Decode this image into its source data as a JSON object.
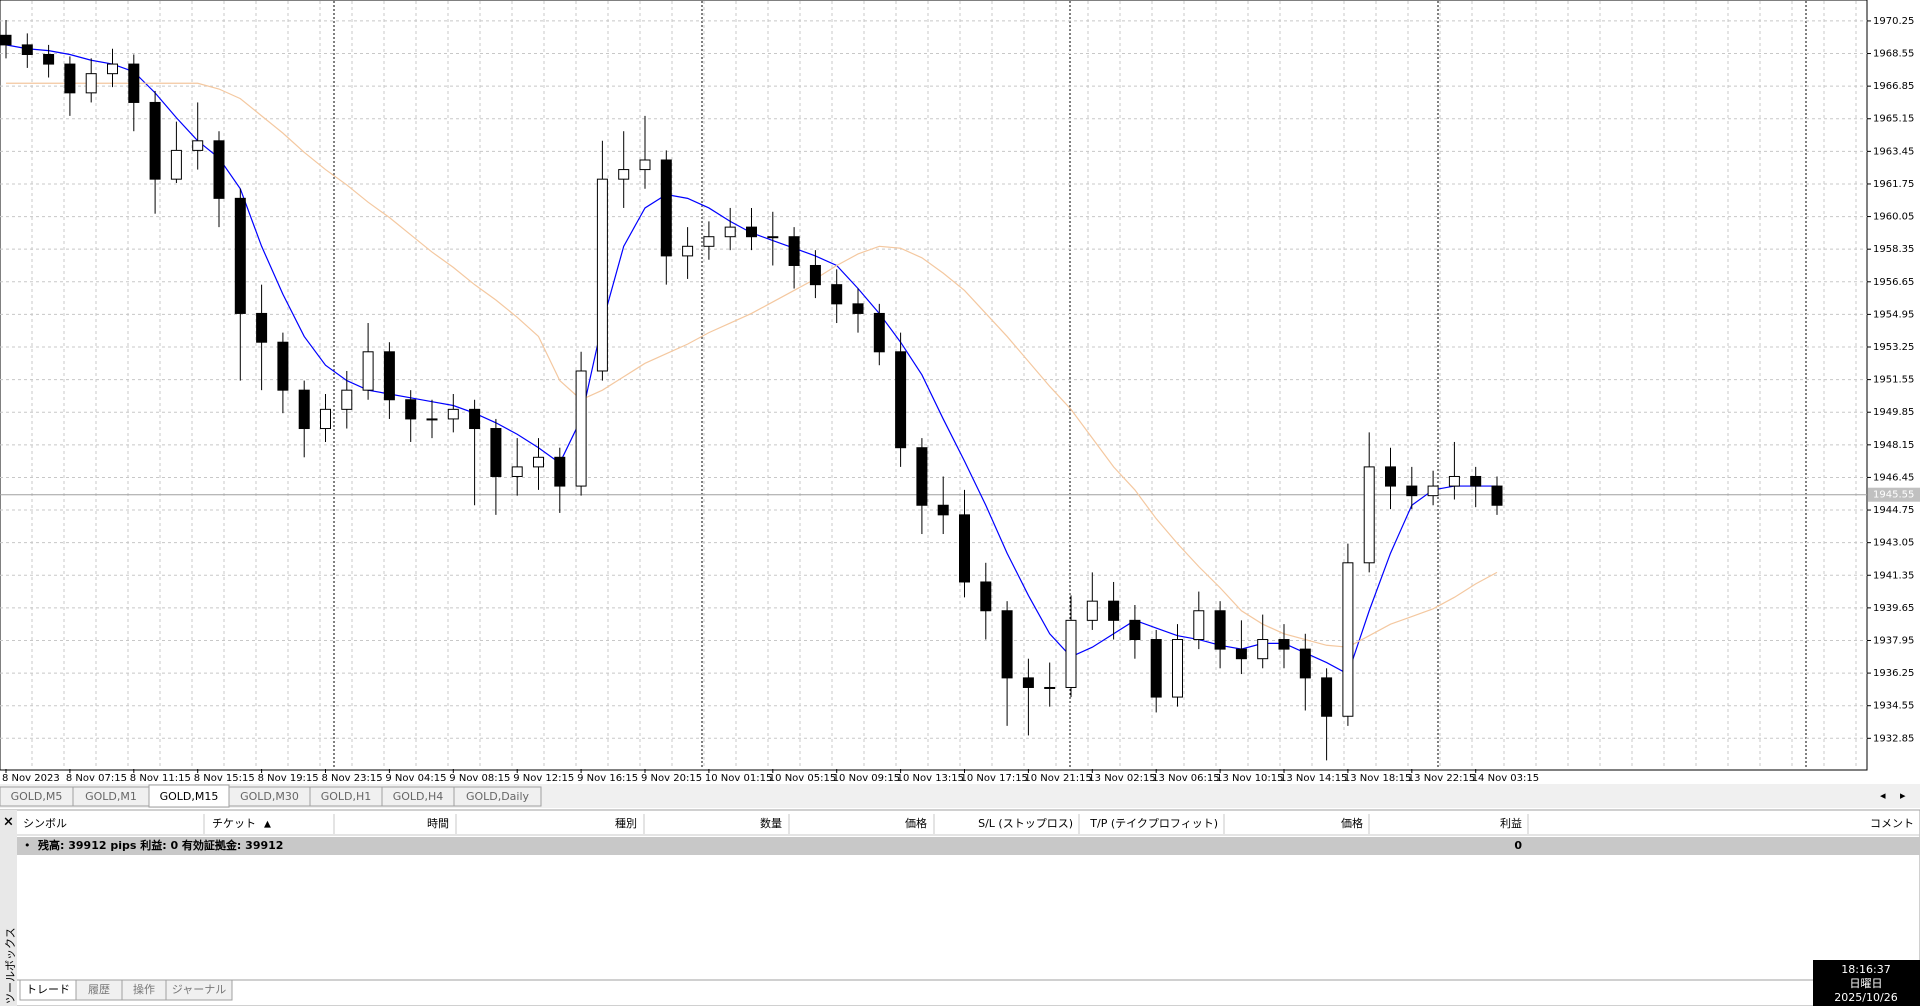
{
  "chart_data": {
    "type": "candlestick",
    "categories": [
      "8 Nov 2023",
      null,
      null,
      "8 Nov 07:15",
      null,
      null,
      "8 Nov 11:15",
      null,
      null,
      "8 Nov 15:15",
      null,
      null,
      "8 Nov 19:15",
      null,
      null,
      "8 Nov 23:15",
      null,
      null,
      "9 Nov 04:15",
      null,
      null,
      "9 Nov 08:15",
      null,
      null,
      "9 Nov 12:15",
      null,
      null,
      "9 Nov 16:15",
      null,
      null,
      "9 Nov 20:15",
      null,
      null,
      "10 Nov 01:15",
      null,
      null,
      "10 Nov 05:15",
      null,
      null,
      "10 Nov 09:15",
      null,
      null,
      "10 Nov 13:15",
      null,
      null,
      "10 Nov 17:15",
      null,
      null,
      "10 Nov 21:15",
      null,
      null,
      "13 Nov 02:15",
      null,
      null,
      "13 Nov 06:15",
      null,
      null,
      "13 Nov 10:15",
      null,
      null,
      "13 Nov 14:15",
      null,
      null,
      "13 Nov 18:15",
      null,
      null,
      "13 Nov 22:15",
      null,
      null,
      "14 Nov 03:15",
      null
    ],
    "open": [
      1969.5,
      1969,
      1968.5,
      1968,
      1966.5,
      1967.5,
      1968,
      1966,
      1962,
      1963.5,
      1964,
      1961,
      1955,
      1953.5,
      1951,
      1949,
      1950,
      1951,
      1953,
      1950.5,
      1949.5,
      1949.5,
      1950,
      1949,
      1946.5,
      1947,
      1947.5,
      1946,
      1952,
      1962,
      1962.5,
      1963,
      1958,
      1958.5,
      1959,
      1959.5,
      1959,
      1959,
      1957.5,
      1956.5,
      1955.5,
      1955,
      1953,
      1948,
      1945,
      1944.5,
      1941,
      1939.5,
      1936,
      1935.5,
      1935.5,
      1939,
      1940,
      1939,
      1938,
      1935,
      1938,
      1939.5,
      1937.5,
      1937,
      1938,
      1937.5,
      1936,
      1934,
      1942,
      1947,
      1946,
      1945.5,
      1946,
      1946.5,
      1946
    ],
    "high": [
      1970.3,
      1969.6,
      1969,
      1968.4,
      1968.3,
      1968.8,
      1968.5,
      1966.6,
      1965,
      1966,
      1964.5,
      1961.5,
      1956.5,
      1954,
      1951.5,
      1950.8,
      1952,
      1954.5,
      1953.5,
      1951,
      1950.5,
      1950.8,
      1950.5,
      1949.5,
      1948.5,
      1948.5,
      1948,
      1953,
      1964,
      1964.5,
      1965.3,
      1963.5,
      1959.5,
      1959.8,
      1960.5,
      1960.5,
      1960.3,
      1959.5,
      1958.3,
      1957.3,
      1956.3,
      1955.5,
      1954,
      1948.5,
      1946.5,
      1945.8,
      1942,
      1940,
      1937,
      1936.8,
      1940.3,
      1941.5,
      1941,
      1939.8,
      1938.5,
      1938.8,
      1940.5,
      1940,
      1939,
      1939.3,
      1938.8,
      1938.3,
      1936.5,
      1943,
      1948.8,
      1948,
      1947,
      1946.8,
      1948.3,
      1947,
      1946.5
    ],
    "low": [
      1968.3,
      1967.8,
      1967.3,
      1965.3,
      1966,
      1966.8,
      1964.5,
      1960.2,
      1961.8,
      1962.5,
      1959.5,
      1951.5,
      1951,
      1949.8,
      1947.5,
      1948.3,
      1949,
      1950.5,
      1949.5,
      1948.3,
      1948.5,
      1948.8,
      1945,
      1944.5,
      1945.5,
      1945.8,
      1944.6,
      1945.5,
      1951.5,
      1960.5,
      1961.5,
      1956.5,
      1956.8,
      1957.8,
      1958.3,
      1958.3,
      1957.5,
      1956.3,
      1955.8,
      1954.5,
      1954,
      1952.3,
      1947,
      1943.5,
      1943.5,
      1940.2,
      1938,
      1933.5,
      1933,
      1934.5,
      1935,
      1938.5,
      1938,
      1937,
      1934.2,
      1934.5,
      1937.5,
      1936.5,
      1936.2,
      1936.5,
      1936.5,
      1934.3,
      1931.7,
      1933.5,
      1941.5,
      1944.8,
      1944.8,
      1945,
      1945.3,
      1944.9,
      1944.5
    ],
    "close": [
      1969,
      1968.5,
      1968,
      1966.5,
      1967.5,
      1968,
      1966,
      1962,
      1963.5,
      1964,
      1961,
      1955,
      1953.5,
      1951,
      1949,
      1950,
      1951,
      1953,
      1950.5,
      1949.5,
      1949.5,
      1950,
      1949,
      1946.5,
      1947,
      1947.5,
      1946,
      1952,
      1962,
      1962.5,
      1963,
      1958,
      1958.5,
      1959,
      1959.5,
      1959,
      1959,
      1957.5,
      1956.5,
      1955.5,
      1955,
      1953,
      1948,
      1945,
      1944.5,
      1941,
      1939.5,
      1936,
      1935.5,
      1935.5,
      1939,
      1940,
      1939,
      1938,
      1935,
      1938,
      1939.5,
      1937.5,
      1937,
      1938,
      1937.5,
      1936,
      1934,
      1942,
      1947,
      1946,
      1945.5,
      1946,
      1946.5,
      1946,
      1945
    ],
    "series": [
      {
        "color": "#0000ff",
        "values": [
          1969,
          1968.8,
          1968.7,
          1968.5,
          1968.2,
          1968,
          1967.6,
          1966.5,
          1965.2,
          1964,
          1963.1,
          1961.5,
          1958.5,
          1956,
          1953.8,
          1952.3,
          1951.5,
          1951,
          1950.8,
          1950.6,
          1950.4,
          1950.2,
          1949.8,
          1949.3,
          1948.7,
          1948,
          1947.2,
          1949.5,
          1954.5,
          1958.5,
          1960.5,
          1961.2,
          1961,
          1960.5,
          1959.8,
          1959.2,
          1958.8,
          1958.4,
          1958,
          1957.5,
          1956.3,
          1955,
          1953.5,
          1951.8,
          1949.5,
          1947.3,
          1945,
          1942.5,
          1940.3,
          1938.3,
          1937.1,
          1937.6,
          1938.3,
          1939,
          1938.6,
          1938.2,
          1938,
          1937.7,
          1937.5,
          1937.8,
          1937.8,
          1937.3,
          1936.8,
          1936.2,
          1939.5,
          1942.5,
          1945,
          1945.8,
          1946,
          1946,
          1946
        ]
      },
      {
        "color": "#f4c8a0",
        "values": [
          1967,
          1967,
          1967,
          1967,
          1967,
          1967,
          1967,
          1967,
          1967,
          1967,
          1966.7,
          1966.2,
          1965.3,
          1964.4,
          1963.4,
          1962.5,
          1961.7,
          1960.8,
          1960,
          1959.1,
          1958.2,
          1957.4,
          1956.5,
          1955.7,
          1954.8,
          1953.8,
          1951.5,
          1950.5,
          1951,
          1951.7,
          1952.4,
          1952.9,
          1953.4,
          1954,
          1954.5,
          1955,
          1955.6,
          1956.2,
          1956.8,
          1957.5,
          1958.1,
          1958.5,
          1958.4,
          1957.9,
          1957.1,
          1956.2,
          1955,
          1953.8,
          1952.5,
          1951.2,
          1950,
          1948.5,
          1947,
          1945.8,
          1944.3,
          1943,
          1941.8,
          1940.7,
          1939.5,
          1938.8,
          1938.3,
          1938,
          1937.7,
          1937.6,
          1938.2,
          1938.8,
          1939.2,
          1939.6,
          1940.2,
          1940.9,
          1941.5
        ]
      }
    ],
    "up_color": "#ffffff",
    "down_color": "#000000",
    "current_price": 1945.55,
    "ylim": [
      1931.25,
      1971.08
    ],
    "yticks": [
      1970.25,
      1968.55,
      1966.85,
      1965.15,
      1963.45,
      1961.75,
      1960.05,
      1958.35,
      1956.65,
      1954.95,
      1953.25,
      1951.55,
      1949.85,
      1948.15,
      1946.45,
      1944.75,
      1943.05,
      1941.35,
      1939.65,
      1937.95,
      1936.25,
      1934.55,
      1932.85
    ],
    "grid": true
  },
  "chart_tabs": [
    "GOLD,M5",
    "GOLD,M1",
    "GOLD,M15",
    "GOLD,M30",
    "GOLD,H1",
    "GOLD,H4",
    "GOLD,Daily"
  ],
  "toolbox": {
    "title": "ツールボックス",
    "columns": [
      "シンボル",
      "チケット",
      "時間",
      "種別",
      "数量",
      "価格",
      "S/L (ストップロス)",
      "T/P (テイクプロフィット)",
      "価格",
      "利益",
      "コメント"
    ],
    "summary": "残高: 39912 pips  利益: 0  有効証拠金: 39912",
    "profit": 0,
    "tabs": [
      "トレード",
      "履歴",
      "操作",
      "ジャーナル"
    ]
  },
  "clock": {
    "time": "18:16:37",
    "day": "日曜日",
    "date": "2025/10/26"
  }
}
